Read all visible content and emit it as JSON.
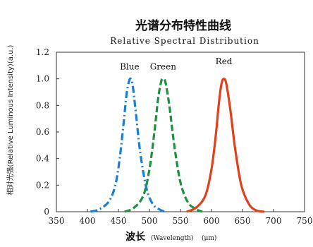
{
  "chart_data": {
    "type": "line",
    "title": "光谱分布特性曲线",
    "subtitle": "Relative Spectral Distribution",
    "xlabel": "波长",
    "xlabel_en": "(Wavelength)",
    "xlabel_unit": "(μm)",
    "ylabel": "相对光强(Relative Luminous Intensity)(a.u.)",
    "xlim": [
      350,
      750
    ],
    "ylim": [
      0,
      1.2
    ],
    "x_ticks": [
      "350",
      "400",
      "450",
      "500",
      "550",
      "600",
      "650",
      "700",
      "750"
    ],
    "y_ticks": [
      "0",
      "0.2",
      "0.4",
      "0.6",
      "0.8",
      "1.0",
      "1.2"
    ],
    "series": [
      {
        "name": "Blue",
        "color": "#1a7fd4",
        "style": "dash-dot",
        "x": [
          405,
          420,
          435,
          445,
          452,
          458,
          463,
          467,
          470,
          473,
          478,
          485,
          495,
          505,
          515,
          525
        ],
        "y": [
          0.0,
          0.02,
          0.08,
          0.2,
          0.4,
          0.65,
          0.88,
          0.98,
          1.0,
          0.95,
          0.75,
          0.45,
          0.18,
          0.06,
          0.02,
          0.0
        ]
      },
      {
        "name": "Green",
        "color": "#1e9040",
        "style": "dash",
        "x": [
          460,
          475,
          490,
          500,
          508,
          514,
          519,
          522,
          526,
          532,
          540,
          550,
          562,
          575,
          585
        ],
        "y": [
          0.0,
          0.03,
          0.12,
          0.32,
          0.6,
          0.85,
          0.98,
          1.0,
          0.97,
          0.8,
          0.5,
          0.22,
          0.07,
          0.02,
          0.0
        ]
      },
      {
        "name": "Red",
        "color": "#e0401a",
        "style": "solid",
        "x": [
          560,
          575,
          590,
          600,
          607,
          612,
          616,
          620,
          624,
          630,
          638,
          648,
          660,
          672,
          685
        ],
        "y": [
          0.0,
          0.03,
          0.12,
          0.32,
          0.58,
          0.82,
          0.96,
          1.0,
          0.96,
          0.78,
          0.48,
          0.2,
          0.06,
          0.01,
          0.0
        ]
      }
    ],
    "series_labels": [
      {
        "name": "Blue",
        "x": 468,
        "y": 1.07
      },
      {
        "name": "Green",
        "x": 522,
        "y": 1.07
      },
      {
        "name": "Red",
        "x": 620,
        "y": 1.11
      }
    ],
    "grid": false
  }
}
